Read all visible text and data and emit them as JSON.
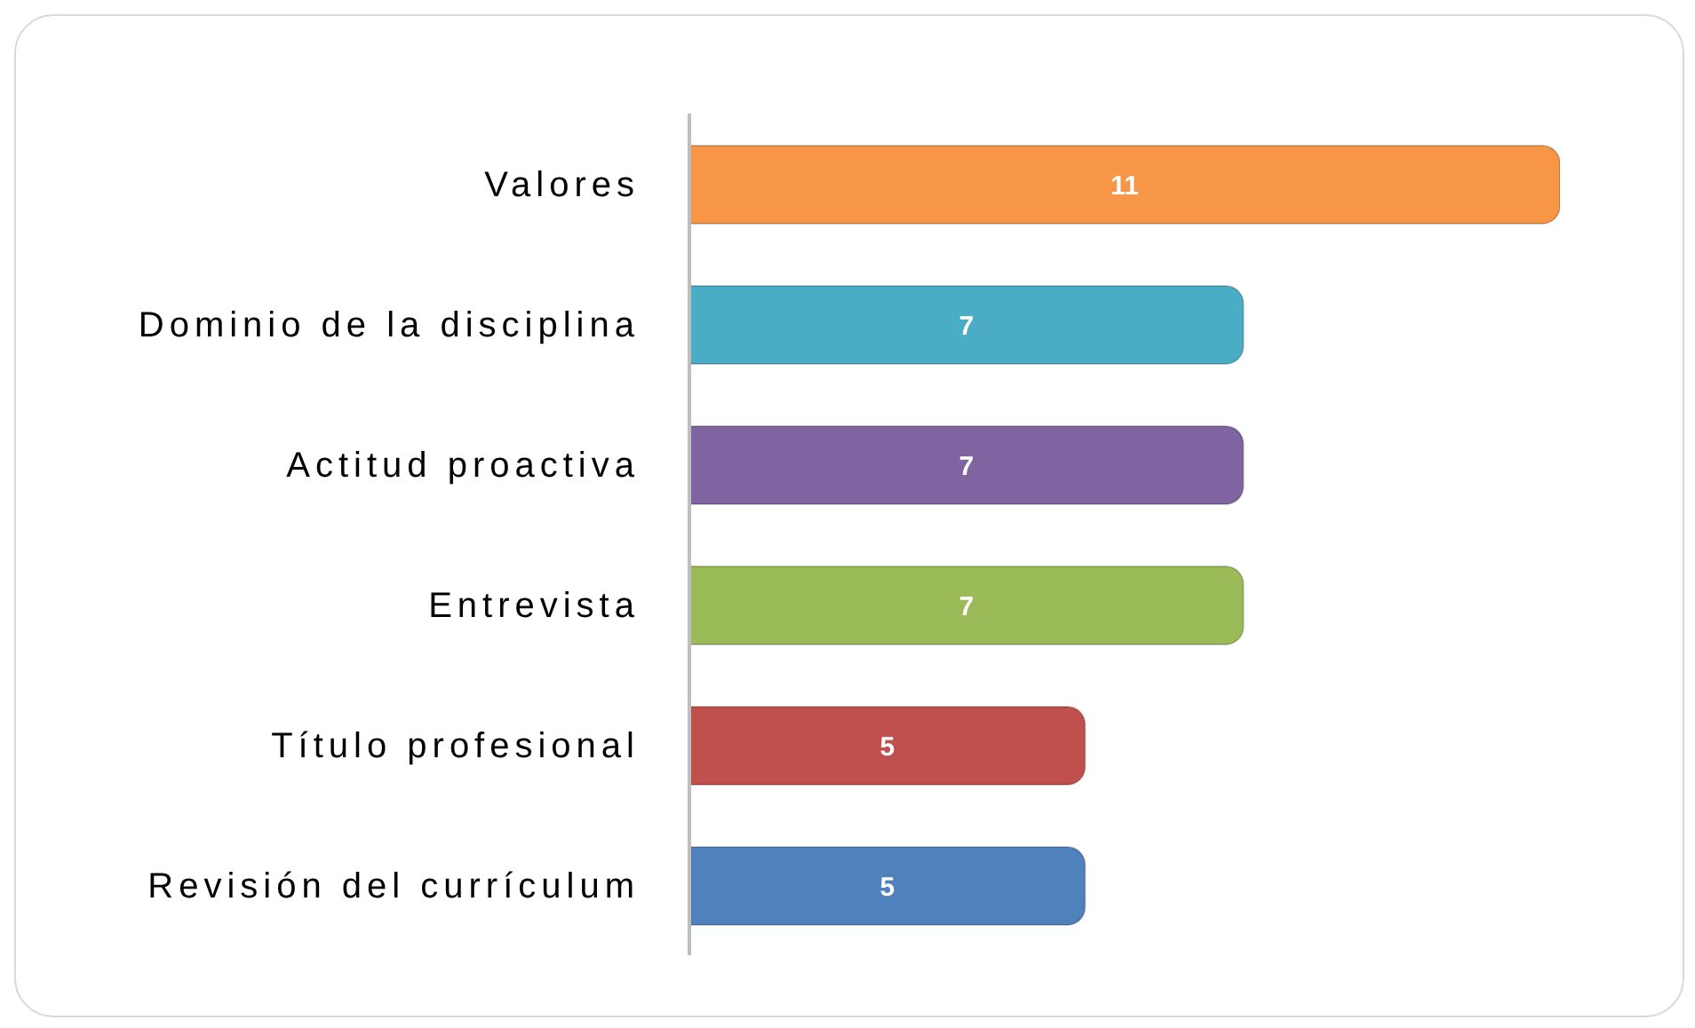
{
  "chart_data": {
    "type": "bar",
    "orientation": "horizontal",
    "categories": [
      "Valores",
      "Dominio de la disciplina",
      "Actitud proactiva",
      "Entrevista",
      "Título profesional",
      "Revisión del currículum"
    ],
    "values": [
      11,
      7,
      7,
      7,
      5,
      5
    ],
    "colors": [
      "#f79646",
      "#4bacc6",
      "#8064a2",
      "#9bbb59",
      "#c0504d",
      "#4f81bd"
    ],
    "data_labels": true,
    "tick_labels": "y"
  }
}
